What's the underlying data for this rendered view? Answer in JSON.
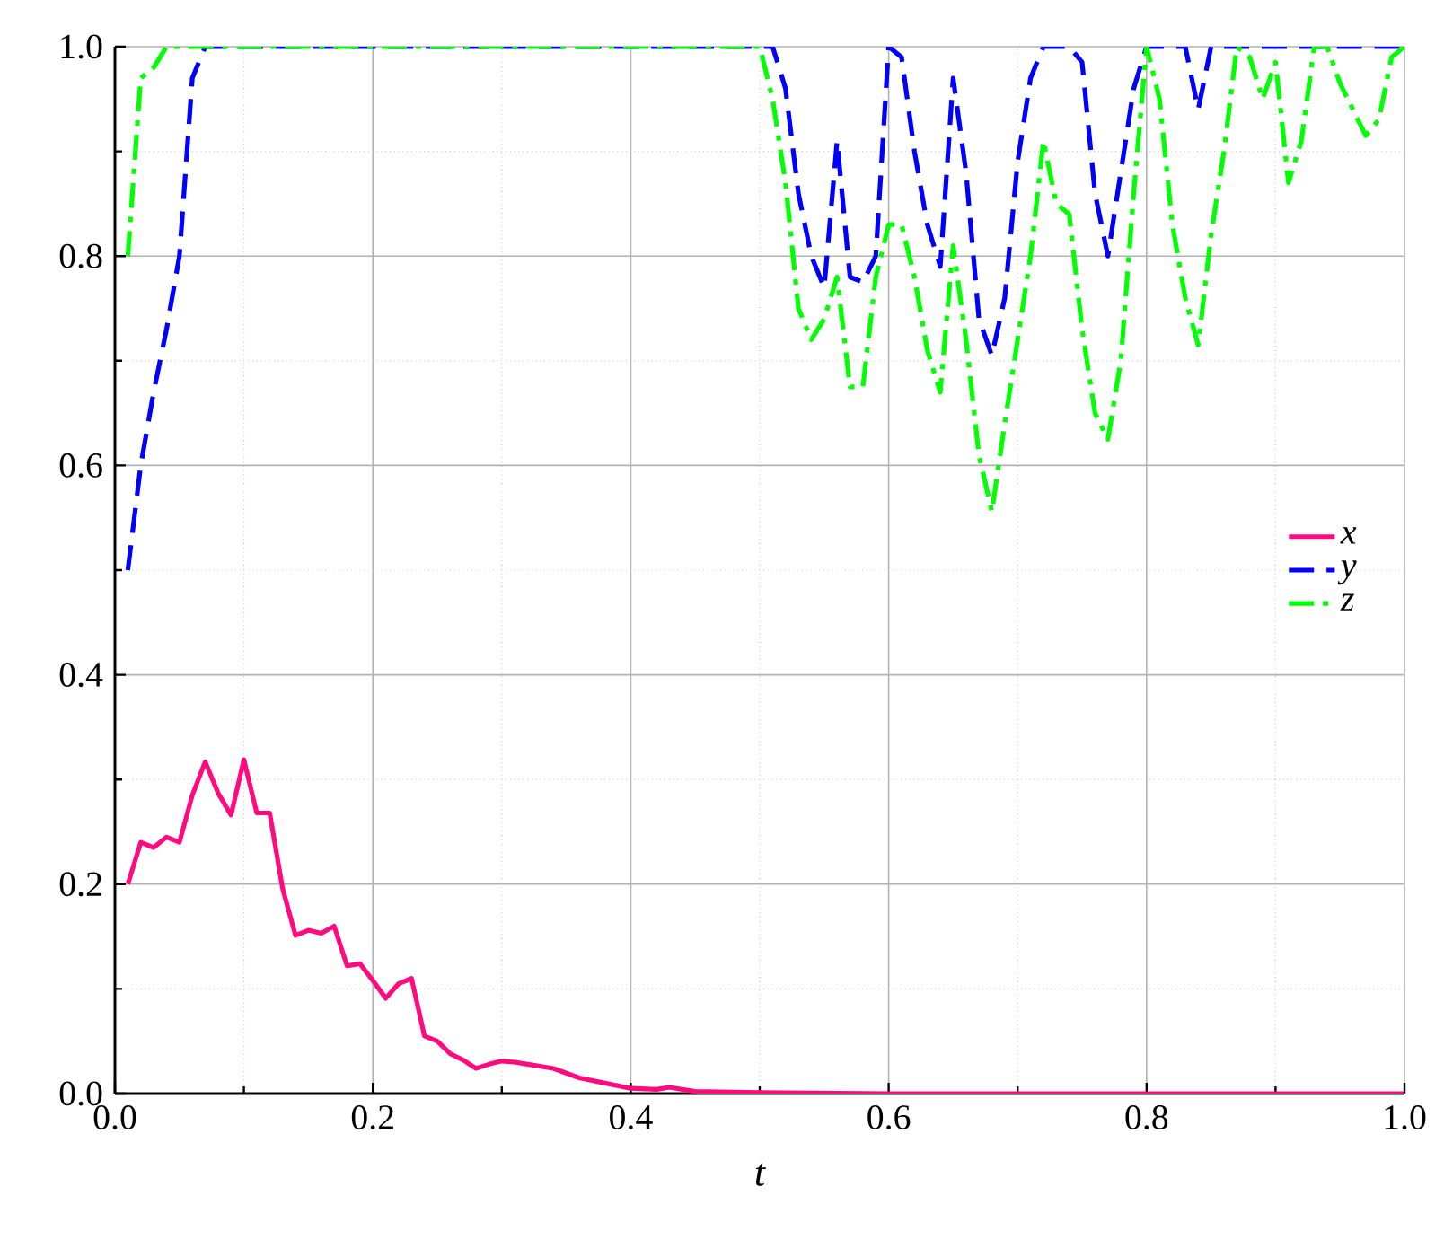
{
  "chart_data": {
    "type": "line",
    "xlabel": "t",
    "xlim": [
      0,
      1
    ],
    "ylim": [
      0,
      1
    ],
    "xticks": [
      {
        "value": 0,
        "label": "0.0"
      },
      {
        "value": 0.2,
        "label": "0.2"
      },
      {
        "value": 0.4,
        "label": "0.4"
      },
      {
        "value": 0.6,
        "label": "0.6"
      },
      {
        "value": 0.8,
        "label": "0.8"
      },
      {
        "value": 1,
        "label": "1.0"
      }
    ],
    "yticks": [
      {
        "value": 0,
        "label": "0.0"
      },
      {
        "value": 0.2,
        "label": "0.2"
      },
      {
        "value": 0.4,
        "label": "0.4"
      },
      {
        "value": 0.6,
        "label": "0.6"
      },
      {
        "value": 0.8,
        "label": "0.8"
      },
      {
        "value": 1,
        "label": "1.0"
      }
    ],
    "grid": true,
    "legend": "right",
    "marker": "none",
    "series": [
      {
        "name": "x",
        "color": "#ff0a7f",
        "line_style": "solid",
        "x": [
          0.01,
          0.02,
          0.03,
          0.04,
          0.05,
          0.06,
          0.07,
          0.08,
          0.09,
          0.1,
          0.11,
          0.12,
          0.13,
          0.14,
          0.15,
          0.16,
          0.17,
          0.18,
          0.19,
          0.2,
          0.21,
          0.22,
          0.23,
          0.24,
          0.25,
          0.26,
          0.27,
          0.28,
          0.29,
          0.3,
          0.31,
          0.32,
          0.34,
          0.36,
          0.38,
          0.4,
          0.42,
          0.43,
          0.45,
          0.5,
          0.6,
          1.0
        ],
        "values": [
          0.2,
          0.24,
          0.235,
          0.245,
          0.24,
          0.285,
          0.317,
          0.287,
          0.266,
          0.319,
          0.268,
          0.268,
          0.196,
          0.151,
          0.156,
          0.153,
          0.16,
          0.122,
          0.124,
          0.108,
          0.091,
          0.105,
          0.11,
          0.055,
          0.05,
          0.038,
          0.032,
          0.024,
          0.028,
          0.031,
          0.03,
          0.028,
          0.024,
          0.015,
          0.01,
          0.005,
          0.004,
          0.006,
          0.002,
          0.001,
          0,
          0
        ]
      },
      {
        "name": "y",
        "color": "#0000ff",
        "line_style": "dashed",
        "x": [
          0.01,
          0.02,
          0.03,
          0.04,
          0.05,
          0.06,
          0.07,
          0.51,
          0.52,
          0.53,
          0.54,
          0.55,
          0.56,
          0.57,
          0.58,
          0.59,
          0.6,
          0.61,
          0.62,
          0.63,
          0.64,
          0.65,
          0.66,
          0.67,
          0.68,
          0.69,
          0.7,
          0.71,
          0.72,
          0.73,
          0.74,
          0.75,
          0.76,
          0.77,
          0.78,
          0.79,
          0.8,
          0.83,
          0.84,
          0.85,
          1.0
        ],
        "values": [
          0.5,
          0.6,
          0.67,
          0.73,
          0.8,
          0.97,
          1.0,
          1.0,
          0.96,
          0.86,
          0.8,
          0.77,
          0.91,
          0.78,
          0.775,
          0.8,
          1.0,
          0.99,
          0.9,
          0.83,
          0.79,
          0.97,
          0.88,
          0.74,
          0.705,
          0.76,
          0.89,
          0.97,
          1.0,
          1.0,
          1.0,
          0.985,
          0.86,
          0.8,
          0.88,
          0.96,
          1.0,
          1.0,
          0.94,
          1.0,
          1.0
        ]
      },
      {
        "name": "z",
        "color": "#00ff00",
        "line_style": "dashdot",
        "x": [
          0.01,
          0.02,
          0.03,
          0.04,
          0.5,
          0.51,
          0.52,
          0.53,
          0.54,
          0.55,
          0.56,
          0.57,
          0.58,
          0.59,
          0.6,
          0.61,
          0.62,
          0.63,
          0.64,
          0.65,
          0.66,
          0.67,
          0.68,
          0.69,
          0.7,
          0.71,
          0.72,
          0.73,
          0.74,
          0.75,
          0.76,
          0.77,
          0.78,
          0.79,
          0.8,
          0.81,
          0.82,
          0.83,
          0.84,
          0.85,
          0.86,
          0.87,
          0.88,
          0.89,
          0.9,
          0.91,
          0.92,
          0.93,
          0.94,
          0.95,
          0.96,
          0.97,
          0.98,
          0.99,
          1.0
        ],
        "values": [
          0.8,
          0.97,
          0.98,
          1.0,
          1.0,
          0.95,
          0.87,
          0.75,
          0.72,
          0.74,
          0.78,
          0.675,
          0.675,
          0.78,
          0.83,
          0.83,
          0.78,
          0.71,
          0.67,
          0.81,
          0.72,
          0.61,
          0.556,
          0.64,
          0.72,
          0.8,
          0.91,
          0.85,
          0.84,
          0.73,
          0.65,
          0.625,
          0.7,
          0.86,
          1.0,
          0.95,
          0.83,
          0.76,
          0.715,
          0.82,
          0.9,
          1.0,
          0.99,
          0.95,
          0.985,
          0.87,
          0.91,
          1.0,
          1.0,
          0.965,
          0.94,
          0.915,
          0.93,
          0.99,
          1.0
        ]
      }
    ]
  }
}
